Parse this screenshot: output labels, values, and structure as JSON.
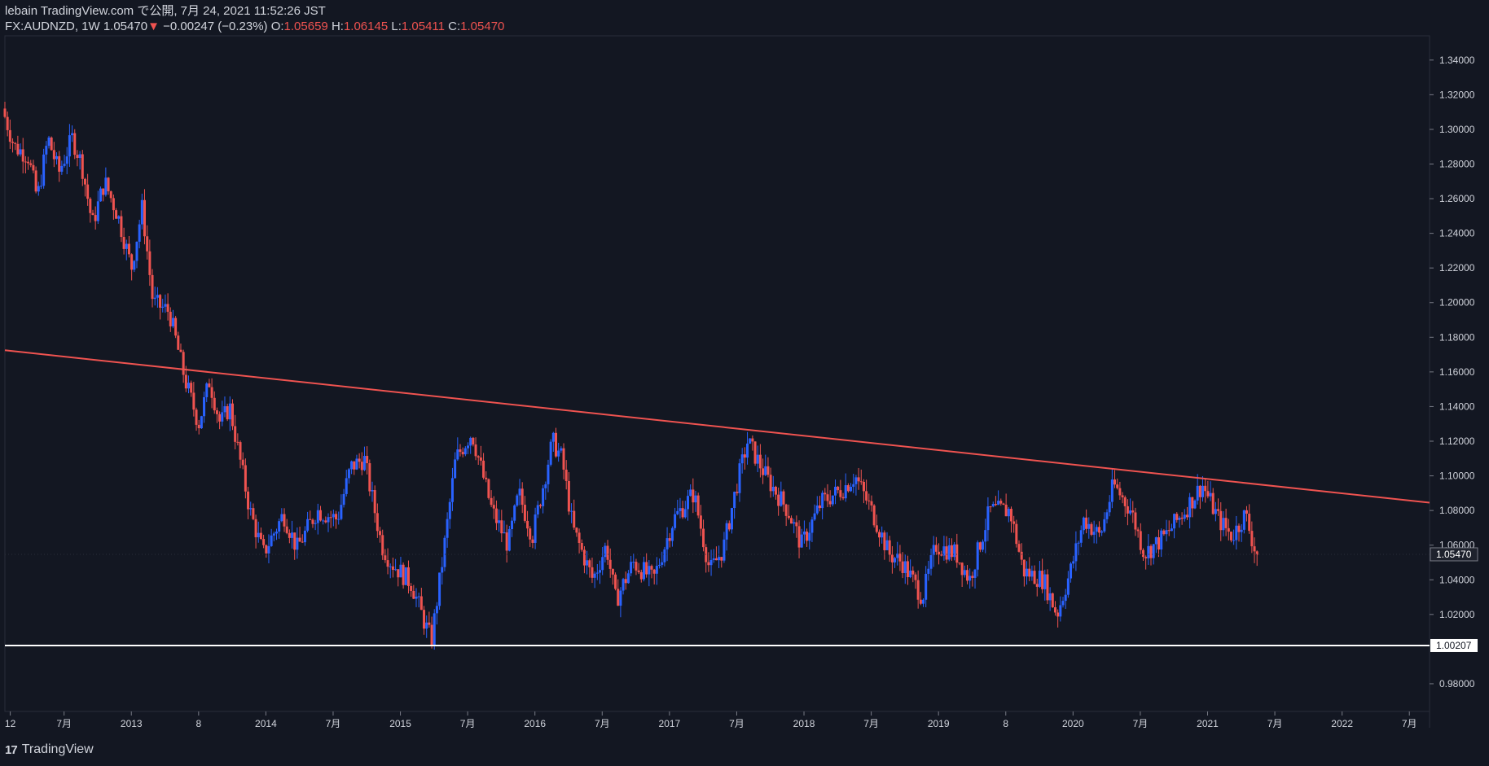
{
  "header": {
    "title": "lebain TradingView.com で公開, 7月 24, 2021 11:52:26 JST",
    "symbol_line": "FX:AUDNZD, 1W 1.05470",
    "change_arrow": "▼",
    "change": "−0.00247 (−0.23%)",
    "o_label": "O:",
    "o_value": "1.05659",
    "h_label": "H:",
    "h_value": "1.06145",
    "l_label": "L:",
    "l_value": "1.05411",
    "c_label": "C:",
    "c_value": "1.05470"
  },
  "footer": {
    "logo_text": "TradingView"
  },
  "colors": {
    "background": "#131722",
    "up": "#2962ff",
    "down": "#ef5350",
    "trendline": "#ef5350",
    "support": "#ffffff",
    "text": "#d1d4dc"
  },
  "chart_data": {
    "type": "candlestick",
    "symbol": "FX:AUDNZD",
    "interval": "1W",
    "y_ticks": [
      "1.34000",
      "1.32000",
      "1.30000",
      "1.28000",
      "1.26000",
      "1.24000",
      "1.22000",
      "1.20000",
      "1.18000",
      "1.16000",
      "1.14000",
      "1.12000",
      "1.10000",
      "1.08000",
      "1.06000",
      "1.04000",
      "1.02000",
      "0.98000"
    ],
    "ylim": [
      0.964,
      1.354
    ],
    "x_ticks": [
      {
        "label": "12",
        "t": 2012.5
      },
      {
        "label": "7月",
        "t": 2012.9
      },
      {
        "label": "2013",
        "t": 2013.4
      },
      {
        "label": "8",
        "t": 2013.9
      },
      {
        "label": "2014",
        "t": 2014.4
      },
      {
        "label": "7月",
        "t": 2014.9
      },
      {
        "label": "2015",
        "t": 2015.4
      },
      {
        "label": "7月",
        "t": 2015.9
      },
      {
        "label": "2016",
        "t": 2016.4
      },
      {
        "label": "7月",
        "t": 2016.9
      },
      {
        "label": "2017",
        "t": 2017.4
      },
      {
        "label": "7月",
        "t": 2017.9
      },
      {
        "label": "2018",
        "t": 2018.4
      },
      {
        "label": "7月",
        "t": 2018.9
      },
      {
        "label": "2019",
        "t": 2019.4
      },
      {
        "label": "8",
        "t": 2019.9
      },
      {
        "label": "2020",
        "t": 2020.4
      },
      {
        "label": "7月",
        "t": 2020.9
      },
      {
        "label": "2021",
        "t": 2021.4
      },
      {
        "label": "7月",
        "t": 2021.9
      },
      {
        "label": "2022",
        "t": 2022.4
      },
      {
        "label": "7月",
        "t": 2022.9
      }
    ],
    "xlim": [
      2012.46,
      2023.05
    ],
    "last_price": "1.05470",
    "support_level": "1.00207",
    "support_value": 1.00207,
    "trendline": [
      {
        "t": 2012.46,
        "v": 1.1725
      },
      {
        "t": 2023.05,
        "v": 1.0845
      }
    ],
    "price_path": [
      [
        2012.46,
        1.312
      ],
      [
        2012.55,
        1.29
      ],
      [
        2012.65,
        1.285
      ],
      [
        2012.72,
        1.26
      ],
      [
        2012.8,
        1.295
      ],
      [
        2012.88,
        1.275
      ],
      [
        2012.98,
        1.295
      ],
      [
        2013.05,
        1.28
      ],
      [
        2013.13,
        1.245
      ],
      [
        2013.22,
        1.27
      ],
      [
        2013.32,
        1.25
      ],
      [
        2013.42,
        1.22
      ],
      [
        2013.5,
        1.255
      ],
      [
        2013.58,
        1.2
      ],
      [
        2013.7,
        1.195
      ],
      [
        2013.82,
        1.155
      ],
      [
        2013.92,
        1.13
      ],
      [
        2014.0,
        1.155
      ],
      [
        2014.08,
        1.13
      ],
      [
        2014.15,
        1.14
      ],
      [
        2014.3,
        1.08
      ],
      [
        2014.4,
        1.055
      ],
      [
        2014.55,
        1.078
      ],
      [
        2014.65,
        1.058
      ],
      [
        2014.8,
        1.08
      ],
      [
        2014.95,
        1.075
      ],
      [
        2015.05,
        1.105
      ],
      [
        2015.15,
        1.11
      ],
      [
        2015.28,
        1.06
      ],
      [
        2015.35,
        1.05
      ],
      [
        2015.5,
        1.038
      ],
      [
        2015.6,
        1.015
      ],
      [
        2015.65,
        1.005
      ],
      [
        2015.73,
        1.05
      ],
      [
        2015.83,
        1.11
      ],
      [
        2015.95,
        1.125
      ],
      [
        2016.1,
        1.08
      ],
      [
        2016.22,
        1.06
      ],
      [
        2016.3,
        1.09
      ],
      [
        2016.4,
        1.065
      ],
      [
        2016.55,
        1.12
      ],
      [
        2016.62,
        1.11
      ],
      [
        2016.7,
        1.07
      ],
      [
        2016.85,
        1.04
      ],
      [
        2016.95,
        1.06
      ],
      [
        2017.02,
        1.028
      ],
      [
        2017.15,
        1.05
      ],
      [
        2017.3,
        1.04
      ],
      [
        2017.45,
        1.075
      ],
      [
        2017.6,
        1.09
      ],
      [
        2017.72,
        1.045
      ],
      [
        2017.82,
        1.058
      ],
      [
        2017.92,
        1.095
      ],
      [
        2018.0,
        1.12
      ],
      [
        2018.15,
        1.098
      ],
      [
        2018.3,
        1.08
      ],
      [
        2018.4,
        1.06
      ],
      [
        2018.55,
        1.085
      ],
      [
        2018.7,
        1.092
      ],
      [
        2018.8,
        1.1
      ],
      [
        2018.95,
        1.075
      ],
      [
        2019.05,
        1.055
      ],
      [
        2019.15,
        1.05
      ],
      [
        2019.3,
        1.03
      ],
      [
        2019.4,
        1.06
      ],
      [
        2019.55,
        1.055
      ],
      [
        2019.65,
        1.04
      ],
      [
        2019.8,
        1.08
      ],
      [
        2019.95,
        1.08
      ],
      [
        2020.05,
        1.045
      ],
      [
        2020.2,
        1.04
      ],
      [
        2020.3,
        1.02
      ],
      [
        2020.4,
        1.045
      ],
      [
        2020.5,
        1.075
      ],
      [
        2020.62,
        1.065
      ],
      [
        2020.72,
        1.095
      ],
      [
        2020.85,
        1.08
      ],
      [
        2020.95,
        1.055
      ],
      [
        2021.1,
        1.065
      ],
      [
        2021.25,
        1.08
      ],
      [
        2021.38,
        1.095
      ],
      [
        2021.5,
        1.075
      ],
      [
        2021.6,
        1.065
      ],
      [
        2021.7,
        1.078
      ],
      [
        2021.78,
        1.0547
      ]
    ]
  }
}
